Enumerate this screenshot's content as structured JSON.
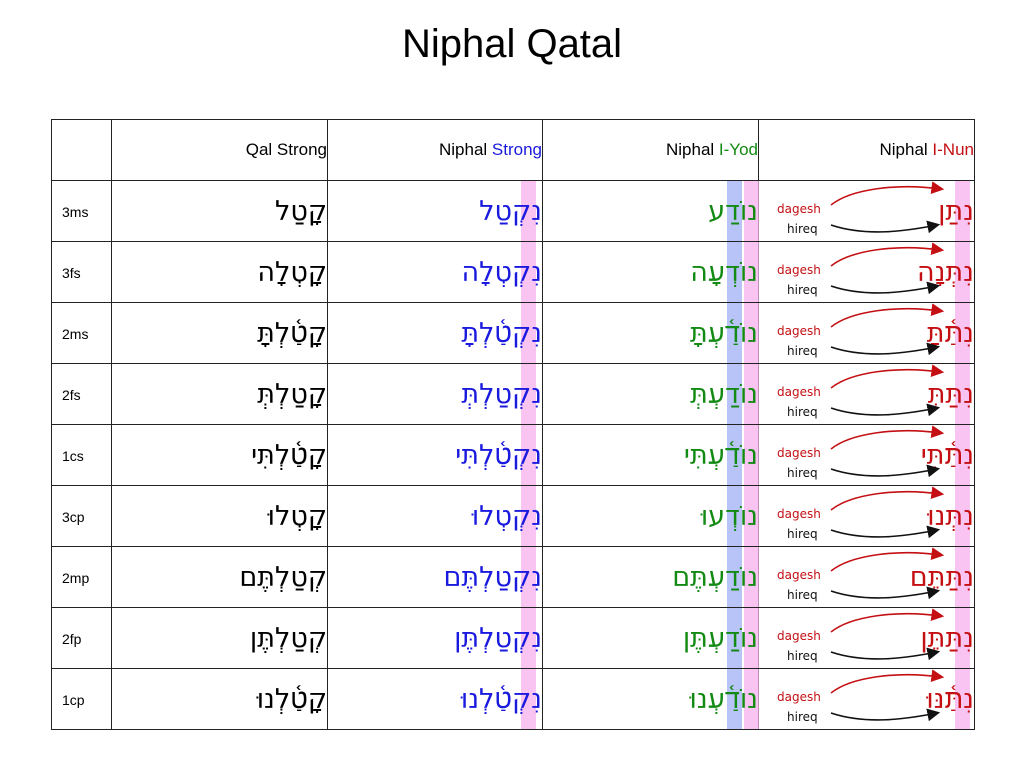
{
  "title": "Niphal Qatal",
  "headers": {
    "c1": "Qal Strong",
    "c2_prefix": "Niphal ",
    "c2_suffix": "Strong",
    "c3_prefix": "Niphal ",
    "c3_suffix": "I-Yod",
    "c4_prefix": "Niphal ",
    "c4_suffix": "I-Nun"
  },
  "annotations": {
    "dagesh": "dagesh",
    "hireq": "hireq"
  },
  "colors": {
    "strong": "#1a1adf",
    "i_yod": "#138a13",
    "i_nun": "#c40f13",
    "highlight_pink": "#f7aff0",
    "highlight_blue": "#acb9f6"
  },
  "rows": [
    {
      "label": "3ms",
      "qal": "קָטַל",
      "niphal": "נִקְטַל",
      "iyod": "נוֹדַע",
      "inun": "נִתַּן"
    },
    {
      "label": "3fs",
      "qal": "קָטְלָה",
      "niphal": "נִקְטְלָה",
      "iyod": "נוֹדְעָה",
      "inun": "נִתְּנָה"
    },
    {
      "label": "2ms",
      "qal": "קָטַ֫לְתָּ",
      "niphal": "נִקְטַ֫לְתָּ",
      "iyod": "נוֹדַ֫עְתָּ",
      "inun": "נִתַּ֫תָּ"
    },
    {
      "label": "2fs",
      "qal": "קָטַלְתְּ",
      "niphal": "נִקְטַלְתְּ",
      "iyod": "נוֹדַעְתְּ",
      "inun": "נִתַּתְּ"
    },
    {
      "label": "1cs",
      "qal": "קָטַ֫לְתִּי",
      "niphal": "נִקְטַ֫לְתִּי",
      "iyod": "נוֹדַ֫עְתִּי",
      "inun": "נִתַּ֫תִּי"
    },
    {
      "label": "3cp",
      "qal": "קָטְלוּ",
      "niphal": "נִקְטְלוּ",
      "iyod": "נוֹדְעוּ",
      "inun": "נִתְּנוּ"
    },
    {
      "label": "2mp",
      "qal": "קְטַלְתֶּם",
      "niphal": "נִקְטַלְתֶּם",
      "iyod": "נוֹדַעְתֶּם",
      "inun": "נִתַּתֶּם"
    },
    {
      "label": "2fp",
      "qal": "קְטַלְתֶּן",
      "niphal": "נִקְטַלְתֶּן",
      "iyod": "נוֹדַעְתֶּן",
      "inun": "נִתַּתֶּן"
    },
    {
      "label": "1cp",
      "qal": "קָטַ֫לְנוּ",
      "niphal": "נִקְטַ֫לְנוּ",
      "iyod": "נוֹדַ֫עְנוּ",
      "inun": "נִתַּ֫נּוּ"
    }
  ]
}
